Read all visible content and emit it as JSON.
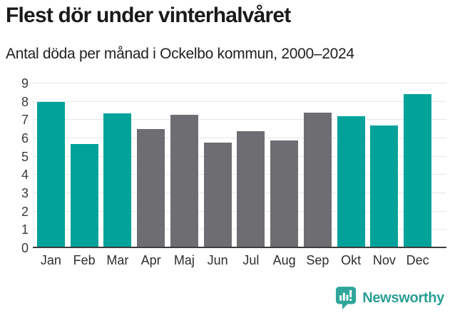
{
  "header": {
    "title": "Flest dör under vinterhalvåret",
    "subtitle": "Antal döda per månad i Ockelbo kommun, 2000–2024"
  },
  "chart_data": {
    "type": "bar",
    "title": "Flest dör under vinterhalvåret",
    "subtitle": "Antal döda per månad i Ockelbo kommun, 2000–2024",
    "categories": [
      "Jan",
      "Feb",
      "Mar",
      "Apr",
      "Maj",
      "Jun",
      "Jul",
      "Aug",
      "Sep",
      "Okt",
      "Nov",
      "Dec"
    ],
    "values": [
      8.0,
      5.7,
      7.35,
      6.5,
      7.3,
      5.75,
      6.4,
      5.9,
      7.4,
      7.2,
      6.7,
      8.4
    ],
    "bar_colors": [
      "teal",
      "teal",
      "teal",
      "gray",
      "gray",
      "gray",
      "gray",
      "gray",
      "gray",
      "teal",
      "teal",
      "teal"
    ],
    "palette": {
      "teal": "#00A29A",
      "gray": "#6E6E72"
    },
    "xlabel": "",
    "ylabel": "",
    "ylim": [
      0,
      9
    ],
    "yticks": [
      0,
      1,
      2,
      3,
      4,
      5,
      6,
      7,
      8,
      9
    ],
    "grid": "horizontal",
    "legend": "none",
    "color_grouping": "winter half-year months (Jan–Mar, Okt–Dec) teal, summer half-year (Apr–Sep) gray"
  },
  "colors": {
    "grid_line": "#E7E7E7",
    "axis_line": "#3D3D3D",
    "title_text": "#1A1A1A",
    "axis_text": "#3A3A3A",
    "brand": "#2B9E96"
  },
  "footer": {
    "brand": "Newsworthy",
    "logo_icon": "bar-chart-speech-bubble-icon"
  }
}
